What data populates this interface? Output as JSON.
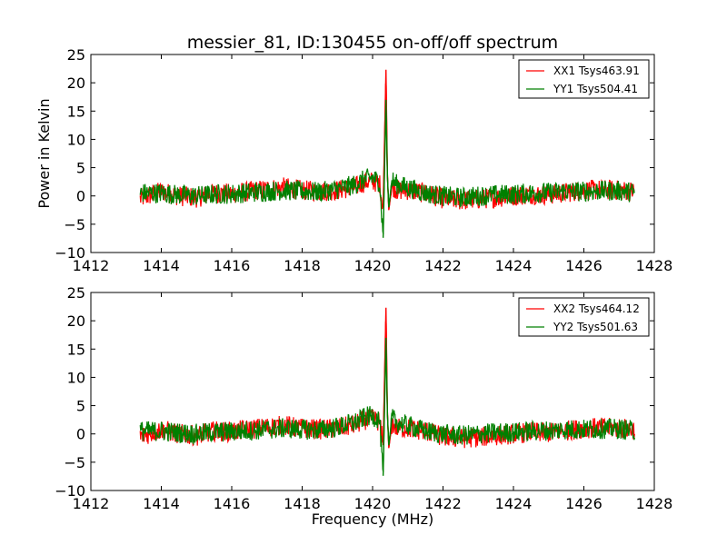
{
  "figure": {
    "title": "messier_81, ID:130455 on-off/off spectrum"
  },
  "chart_data": [
    {
      "type": "line",
      "title": "messier_81, ID:130455 on-off/off spectrum",
      "xlabel": "",
      "ylabel": "Power in Kelvin",
      "xlim": [
        1412,
        1428
      ],
      "ylim": [
        -10,
        25
      ],
      "xticks": [
        "1412",
        "1414",
        "1416",
        "1418",
        "1420",
        "1422",
        "1424",
        "1426",
        "1428"
      ],
      "yticks": [
        "−10",
        "−5",
        "0",
        "5",
        "10",
        "15",
        "20",
        "25"
      ],
      "legend_position": "top-right",
      "grid": false,
      "series": [
        {
          "name": "XX1 Tsys463.91",
          "color": "#ff0000",
          "x": [
            1413.4,
            1414.0,
            1414.5,
            1415.0,
            1415.5,
            1416.0,
            1416.5,
            1417.0,
            1417.5,
            1418.0,
            1418.5,
            1419.0,
            1419.5,
            1419.8,
            1420.0,
            1420.2,
            1420.3,
            1420.38,
            1420.42,
            1420.46,
            1420.55,
            1420.7,
            1421.0,
            1421.5,
            1422.0,
            1422.5,
            1423.0,
            1423.5,
            1424.0,
            1424.5,
            1425.0,
            1425.5,
            1426.0,
            1426.5,
            1427.0,
            1427.45
          ],
          "y": [
            -0.5,
            0.8,
            0.0,
            -0.3,
            0.5,
            0.4,
            0.8,
            1.2,
            1.5,
            1.0,
            0.8,
            1.0,
            1.6,
            2.5,
            2.6,
            2.2,
            -2.0,
            22.3,
            4.0,
            -2.5,
            1.8,
            1.0,
            1.0,
            0.5,
            -0.5,
            -0.8,
            -0.6,
            -0.3,
            0.0,
            0.3,
            0.2,
            0.6,
            1.0,
            1.1,
            1.0,
            0.8
          ]
        },
        {
          "name": "YY1 Tsys504.41",
          "color": "#008000",
          "x": [
            1413.4,
            1414.0,
            1414.5,
            1415.0,
            1415.5,
            1416.0,
            1416.5,
            1417.0,
            1417.5,
            1418.0,
            1418.5,
            1419.0,
            1419.5,
            1419.8,
            1420.0,
            1420.2,
            1420.3,
            1420.38,
            1420.42,
            1420.46,
            1420.55,
            1420.7,
            1421.0,
            1421.5,
            1422.0,
            1422.5,
            1423.0,
            1423.5,
            1424.0,
            1424.5,
            1425.0,
            1425.5,
            1426.0,
            1426.5,
            1427.0,
            1427.45
          ],
          "y": [
            0.5,
            0.5,
            0.2,
            0.0,
            0.3,
            0.4,
            0.6,
            0.8,
            1.0,
            0.8,
            0.7,
            1.2,
            2.0,
            3.0,
            3.2,
            2.5,
            -7.4,
            17.0,
            3.5,
            -2.0,
            2.8,
            2.0,
            1.5,
            0.5,
            0.0,
            -0.3,
            0.0,
            0.2,
            0.3,
            0.5,
            0.6,
            0.8,
            0.8,
            0.9,
            0.9,
            0.6
          ]
        }
      ]
    },
    {
      "type": "line",
      "title": "",
      "xlabel": "Frequency (MHz)",
      "ylabel": "",
      "xlim": [
        1412,
        1428
      ],
      "ylim": [
        -10,
        25
      ],
      "xticks": [
        "1412",
        "1414",
        "1416",
        "1418",
        "1420",
        "1422",
        "1424",
        "1426",
        "1428"
      ],
      "yticks": [
        "−10",
        "−5",
        "0",
        "5",
        "10",
        "15",
        "20",
        "25"
      ],
      "legend_position": "top-right",
      "grid": false,
      "series": [
        {
          "name": "XX2 Tsys464.12",
          "color": "#ff0000",
          "x": [
            1413.4,
            1414.0,
            1414.5,
            1415.0,
            1415.5,
            1416.0,
            1416.5,
            1417.0,
            1417.5,
            1418.0,
            1418.5,
            1419.0,
            1419.5,
            1419.8,
            1420.0,
            1420.2,
            1420.3,
            1420.38,
            1420.42,
            1420.46,
            1420.55,
            1420.7,
            1421.0,
            1421.5,
            1422.0,
            1422.5,
            1423.0,
            1423.5,
            1424.0,
            1424.5,
            1425.0,
            1425.5,
            1426.0,
            1426.5,
            1427.0,
            1427.45
          ],
          "y": [
            -0.5,
            0.8,
            0.0,
            -0.3,
            0.5,
            0.4,
            0.8,
            1.2,
            1.5,
            1.0,
            0.8,
            1.0,
            1.6,
            2.5,
            2.6,
            2.2,
            -2.0,
            22.3,
            4.0,
            -2.5,
            1.8,
            1.0,
            1.0,
            0.5,
            -0.5,
            -0.8,
            -0.6,
            -0.3,
            0.0,
            0.3,
            0.2,
            0.6,
            1.0,
            1.1,
            1.0,
            0.8
          ]
        },
        {
          "name": "YY2 Tsys501.63",
          "color": "#008000",
          "x": [
            1413.4,
            1414.0,
            1414.5,
            1415.0,
            1415.5,
            1416.0,
            1416.5,
            1417.0,
            1417.5,
            1418.0,
            1418.5,
            1419.0,
            1419.5,
            1419.8,
            1420.0,
            1420.2,
            1420.3,
            1420.38,
            1420.42,
            1420.46,
            1420.55,
            1420.7,
            1421.0,
            1421.5,
            1422.0,
            1422.5,
            1423.0,
            1423.5,
            1424.0,
            1424.5,
            1425.0,
            1425.5,
            1426.0,
            1426.5,
            1427.0,
            1427.45
          ],
          "y": [
            0.5,
            0.5,
            0.2,
            0.0,
            0.3,
            0.4,
            0.6,
            0.8,
            1.0,
            0.8,
            0.7,
            1.2,
            2.0,
            3.0,
            3.2,
            2.5,
            -7.4,
            17.0,
            3.5,
            -2.0,
            2.8,
            2.0,
            1.5,
            0.5,
            0.0,
            -0.3,
            0.0,
            0.2,
            0.3,
            0.5,
            0.6,
            0.8,
            0.8,
            0.9,
            0.9,
            0.6
          ]
        }
      ]
    }
  ]
}
